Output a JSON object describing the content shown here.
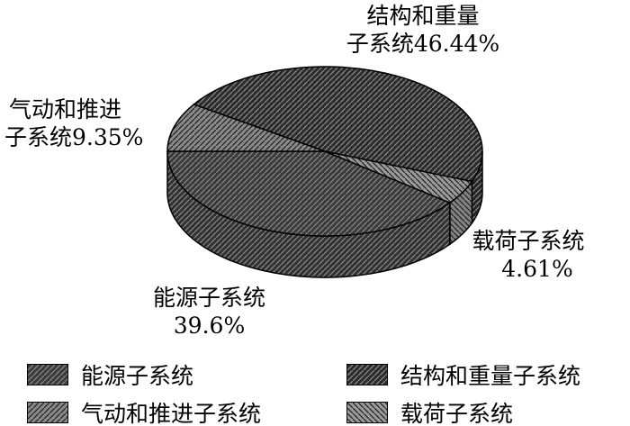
{
  "chart_data": {
    "type": "pie",
    "style": "3d",
    "start_angle_deg": 180,
    "direction": "counterclockwise",
    "slices": [
      {
        "name": "能源子系统",
        "value": 39.6,
        "label_lines": [
          "能源子系统",
          "39.6%"
        ],
        "color": "#3a3a3a",
        "hatch": "/"
      },
      {
        "name": "载荷子系统",
        "value": 4.61,
        "label_lines": [
          "载荷子系统",
          "4.61%"
        ],
        "color": "#9a9a9a",
        "hatch": "\\"
      },
      {
        "name": "结构和重量子系统",
        "value": 46.44,
        "label_lines": [
          "结构和重量",
          "子系统46.44%"
        ],
        "color": "#2b2b2b",
        "hatch": "/"
      },
      {
        "name": "气动和推进子系统",
        "value": 9.35,
        "label_lines": [
          "气动和推进",
          "子系统9.35%"
        ],
        "color": "#8a8a8a",
        "hatch": "/"
      }
    ],
    "legend": {
      "placement": "bottom",
      "entries": [
        "能源子系统",
        "结构和重量子系统",
        "气动和推进子系统",
        "载荷子系统"
      ]
    }
  }
}
